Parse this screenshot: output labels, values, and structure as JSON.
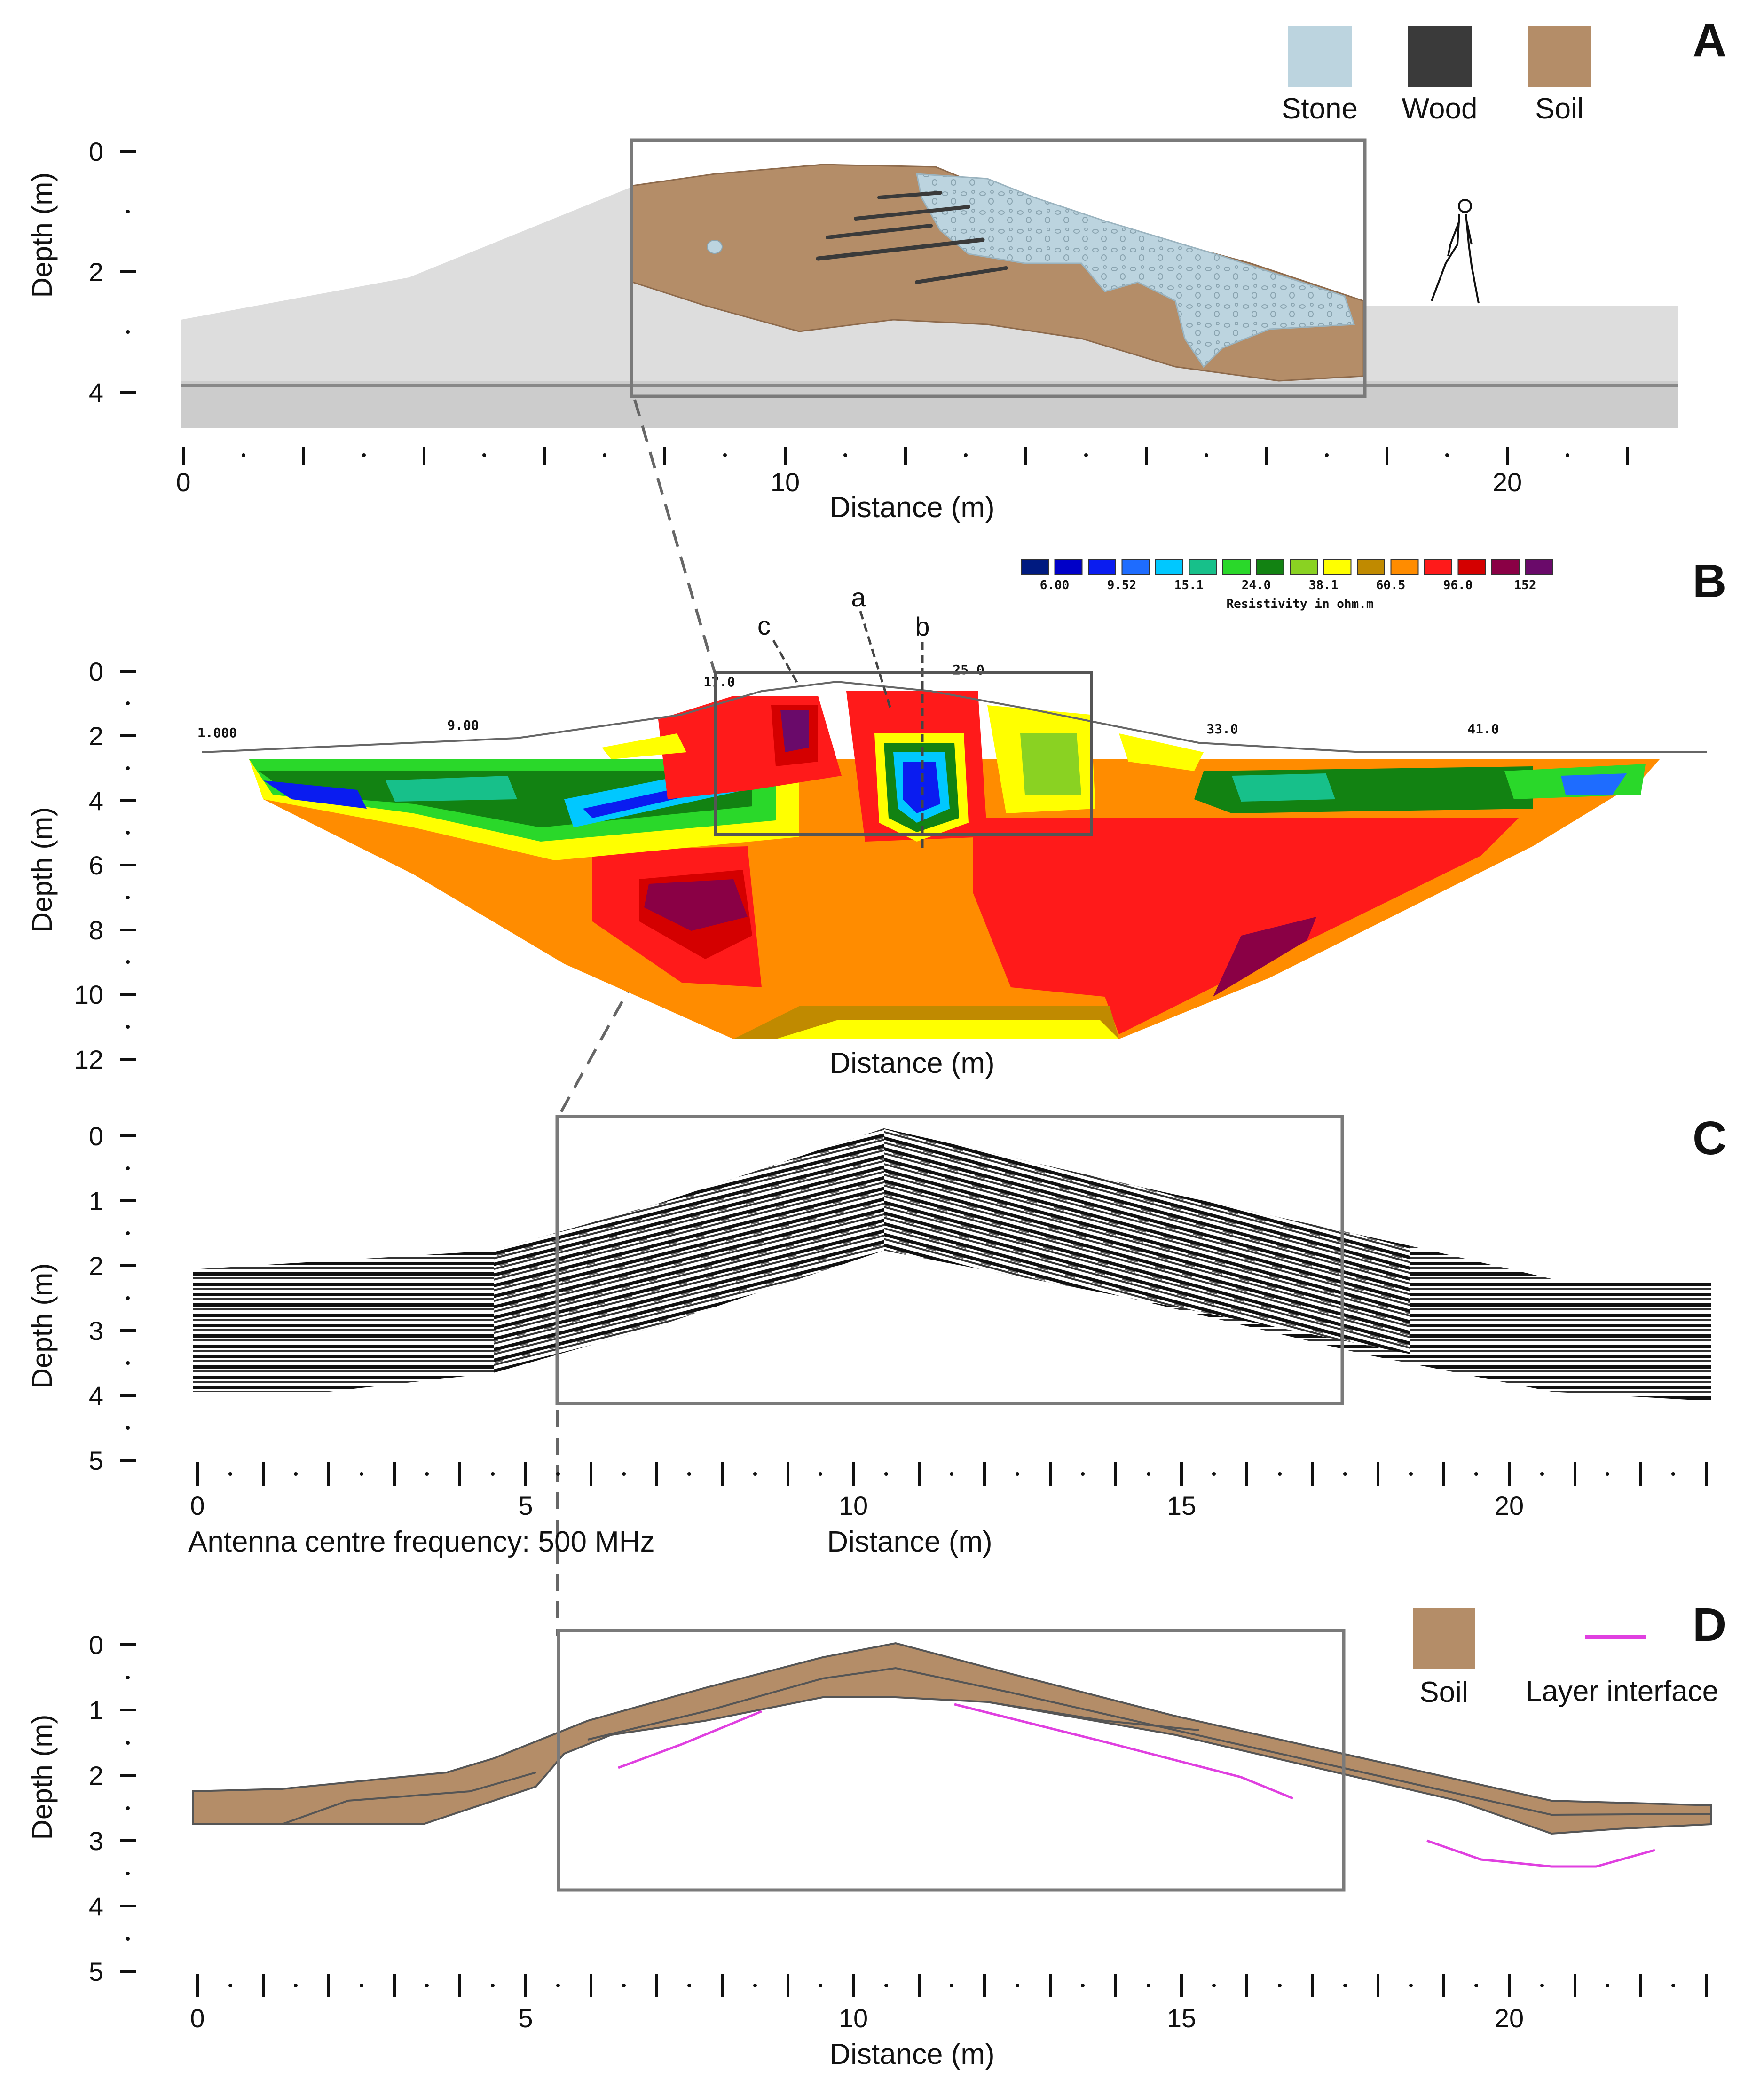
{
  "palette": {
    "stone": "#bcd4df",
    "wood": "#3a3a3a",
    "soil": "#b48d68",
    "interface": "#e040e0",
    "frame": "#7a7a7a",
    "hill": "#dddddd"
  },
  "panelA": {
    "letter": "A",
    "legend": [
      "Stone",
      "Wood",
      "Soil"
    ],
    "ylabel": "Depth (m)",
    "yticks": [
      "0",
      "2",
      "4"
    ],
    "xticks": [
      "0",
      "10",
      "20"
    ],
    "xlabel": "Distance (m)"
  },
  "panelB": {
    "letter": "B",
    "colorscale_values": [
      "6.00",
      "9.52",
      "15.1",
      "24.0",
      "38.1",
      "60.5",
      "96.0",
      "152"
    ],
    "colorscale_colors": [
      "#001a80",
      "#0000c8",
      "#0a1cf0",
      "#1e6cff",
      "#00c8ff",
      "#17c08a",
      "#2ad82a",
      "#128212",
      "#8ad222",
      "#ffff00",
      "#c08a00",
      "#ff8c00",
      "#ff1a1a",
      "#d40000",
      "#8a0045",
      "#6a0a6a"
    ],
    "colorscale_label": "Resistivity in ohm.m",
    "profile_labels": [
      "1.000",
      "9.00",
      "17.0",
      "25.0",
      "33.0",
      "41.0"
    ],
    "markers": [
      "c",
      "a",
      "b"
    ],
    "ylabel": "Depth (m)",
    "yticks": [
      "0",
      "2",
      "4",
      "6",
      "8",
      "10",
      "12"
    ],
    "xlabel": "Distance (m)"
  },
  "panelC": {
    "letter": "C",
    "ylabel": "Depth (m)",
    "yticks": [
      "0",
      "1",
      "2",
      "3",
      "4",
      "5"
    ],
    "xticks": [
      "0",
      "5",
      "10",
      "15",
      "20"
    ],
    "xlabel": "Distance (m)",
    "note": "Antenna centre frequency: 500 MHz"
  },
  "panelD": {
    "letter": "D",
    "legend": [
      "Soil",
      "Layer interface"
    ],
    "ylabel": "Depth (m)",
    "yticks": [
      "0",
      "1",
      "2",
      "3",
      "4",
      "5"
    ],
    "xticks": [
      "0",
      "5",
      "10",
      "15",
      "20"
    ],
    "xlabel": "Distance (m)"
  }
}
